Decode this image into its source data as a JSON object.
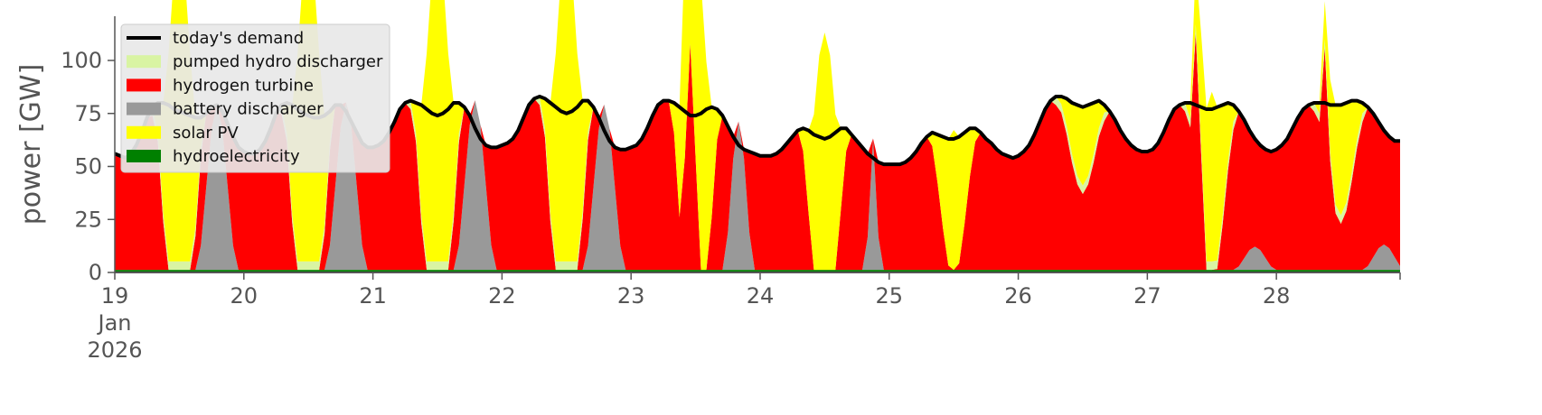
{
  "chart_data": {
    "type": "area",
    "title": "",
    "ylabel": "power [GW]",
    "xlabel": "",
    "ylim": [
      0,
      120
    ],
    "xlim": [
      0,
      239
    ],
    "y_ticks": [
      0,
      25,
      50,
      75,
      100
    ],
    "x_ticks": [
      {
        "hour": 0,
        "lines": [
          "19",
          "Jan",
          "2026"
        ]
      },
      {
        "hour": 24,
        "lines": [
          "20"
        ]
      },
      {
        "hour": 48,
        "lines": [
          "21"
        ]
      },
      {
        "hour": 72,
        "lines": [
          "22"
        ]
      },
      {
        "hour": 96,
        "lines": [
          "23"
        ]
      },
      {
        "hour": 120,
        "lines": [
          "24"
        ]
      },
      {
        "hour": 144,
        "lines": [
          "25"
        ]
      },
      {
        "hour": 168,
        "lines": [
          "26"
        ]
      },
      {
        "hour": 192,
        "lines": [
          "27"
        ]
      },
      {
        "hour": 216,
        "lines": [
          "28"
        ]
      }
    ],
    "legend_position": "top-left",
    "grid": false,
    "demand": {
      "name": "today's demand",
      "color": "#000000",
      "daily_profiles": [
        [
          56,
          55,
          54,
          56,
          60,
          66,
          73,
          78,
          80,
          80,
          79,
          77,
          76,
          75,
          74,
          73,
          73,
          75,
          78,
          79,
          76,
          70,
          64,
          59
        ],
        [
          57,
          56,
          56,
          58,
          62,
          68,
          75,
          79,
          80,
          79,
          77,
          75,
          74,
          73,
          73,
          74,
          76,
          79,
          79,
          76,
          71,
          66,
          61,
          59
        ],
        [
          59,
          60,
          62,
          66,
          71,
          77,
          80,
          81,
          80,
          79,
          77,
          75,
          74,
          75,
          77,
          80,
          80,
          78,
          74,
          68,
          63,
          60,
          59,
          59
        ],
        [
          60,
          61,
          63,
          67,
          73,
          79,
          82,
          83,
          82,
          80,
          78,
          76,
          75,
          76,
          78,
          81,
          81,
          78,
          73,
          67,
          62,
          59,
          58,
          58
        ],
        [
          59,
          60,
          63,
          68,
          74,
          79,
          81,
          81,
          80,
          78,
          76,
          74,
          74,
          75,
          77,
          78,
          77,
          74,
          69,
          64,
          60,
          58,
          57,
          56
        ],
        [
          55,
          55,
          55,
          56,
          58,
          61,
          64,
          67,
          68,
          67,
          65,
          64,
          63,
          64,
          66,
          68,
          68,
          65,
          62,
          59,
          56,
          54,
          52,
          51
        ],
        [
          51,
          51,
          51,
          52,
          54,
          57,
          61,
          64,
          66,
          65,
          64,
          63,
          63,
          64,
          66,
          68,
          68,
          66,
          63,
          61,
          58,
          56,
          55,
          54
        ],
        [
          55,
          57,
          60,
          65,
          71,
          77,
          81,
          83,
          83,
          82,
          80,
          79,
          78,
          79,
          80,
          81,
          79,
          76,
          72,
          67,
          63,
          60,
          58,
          57
        ],
        [
          57,
          58,
          61,
          66,
          72,
          77,
          79,
          80,
          80,
          79,
          78,
          77,
          77,
          78,
          79,
          80,
          79,
          76,
          72,
          67,
          63,
          60,
          58,
          57
        ],
        [
          58,
          60,
          63,
          68,
          73,
          77,
          79,
          80,
          80,
          80,
          79,
          79,
          79,
          80,
          81,
          81,
          80,
          78,
          75,
          71,
          67,
          64,
          62,
          62
        ]
      ]
    },
    "series": [
      {
        "name": "pumped hydro discharger",
        "color": "#d9f4a3"
      },
      {
        "name": "hydrogen turbine",
        "color": "#ff0000"
      },
      {
        "name": "battery discharger",
        "color": "#999999"
      },
      {
        "name": "solar PV",
        "color": "#ffff00"
      },
      {
        "name": "hydroelectricity",
        "color": "#008000"
      }
    ],
    "solar_peaks": [
      {
        "hour": 12,
        "value": 150
      },
      {
        "hour": 36,
        "value": 150
      },
      {
        "hour": 60,
        "value": 150
      },
      {
        "hour": 84,
        "value": 150
      },
      {
        "hour": 108,
        "value": 150
      },
      {
        "hour": 132,
        "value": 112
      },
      {
        "hour": 156,
        "value": 66
      },
      {
        "hour": 180,
        "value": 37
      },
      {
        "hour": 204,
        "value": 80
      },
      {
        "hour": 228,
        "value": 52
      }
    ],
    "battery_peaks": [
      {
        "hour": 19,
        "value": 78,
        "halfwidth": 4
      },
      {
        "hour": 43,
        "value": 79,
        "halfwidth": 4
      },
      {
        "hour": 67,
        "value": 80,
        "halfwidth": 4
      },
      {
        "hour": 91,
        "value": 78,
        "halfwidth": 4
      },
      {
        "hour": 116,
        "value": 70,
        "halfwidth": 3
      },
      {
        "hour": 141,
        "value": 62,
        "halfwidth": 1.5
      },
      {
        "hour": 212,
        "value": 11,
        "halfwidth": 4
      },
      {
        "hour": 236,
        "value": 12,
        "halfwidth": 4
      }
    ],
    "hydrogen_spikes": [
      {
        "hour": 107,
        "value": 108
      },
      {
        "hour": 201,
        "value": 113
      },
      {
        "hour": 225,
        "value": 106
      }
    ],
    "hydro_level": 1.2
  }
}
